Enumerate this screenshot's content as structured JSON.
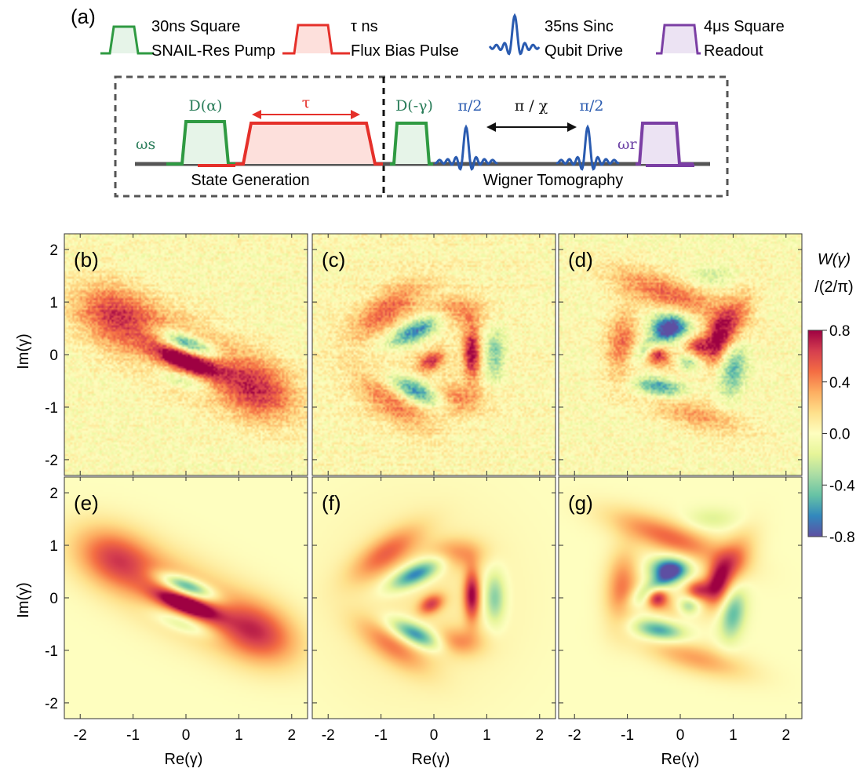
{
  "panel_a": {
    "label": "(a)",
    "legend": [
      {
        "line1": "30ns Square",
        "line2": "SNAIL-Res Pump",
        "color": "#2f9a42"
      },
      {
        "line1": "τ ns",
        "line2": "Flux  Bias Pulse",
        "color": "#e5302a"
      },
      {
        "line1": "35ns Sinc",
        "line2": "Qubit Drive",
        "color": "#2a5bb0"
      },
      {
        "line1": "4μs Square",
        "line2": "Readout",
        "color": "#7b3fa4"
      }
    ],
    "sequence": {
      "omega_s": "ωs",
      "d_alpha": "D(α)",
      "tau": "τ",
      "d_minus_gamma": "D(-γ)",
      "pi_half_1": "π/2",
      "pi_over_chi": "π / χ",
      "pi_half_2": "π/2",
      "omega_r": "ωr",
      "state_generation": "State Generation",
      "wigner_tomography": "Wigner Tomography"
    }
  },
  "panels": [
    {
      "label": "(b)",
      "kind": "measured",
      "model": "squeezed"
    },
    {
      "label": "(c)",
      "kind": "measured",
      "model": "three"
    },
    {
      "label": "(d)",
      "kind": "measured",
      "model": "four"
    },
    {
      "label": "(e)",
      "kind": "simulated",
      "model": "squeezed"
    },
    {
      "label": "(f)",
      "kind": "simulated",
      "model": "three"
    },
    {
      "label": "(g)",
      "kind": "simulated",
      "model": "four"
    }
  ],
  "axes": {
    "xlabel": "Re(γ)",
    "ylabel": "Im(γ)",
    "range": [
      -2.3,
      2.3
    ],
    "xticks": [
      "-2",
      "-1",
      "0",
      "1",
      "2"
    ],
    "yticks": [
      "2",
      "1",
      "0",
      "-1",
      "-2"
    ]
  },
  "colorbar": {
    "title_line1": "W(γ)",
    "title_line2": "/(2/π)",
    "ticks": [
      "0.8",
      "0.4",
      "0.0",
      "-0.4",
      "-0.8"
    ],
    "range": [
      -0.8,
      0.8
    ],
    "colormap": [
      "#5e4fa2",
      "#3288bd",
      "#66c2a5",
      "#abdda4",
      "#e6f598",
      "#fefebf",
      "#fee08b",
      "#fdae61",
      "#f46d43",
      "#d53e4f",
      "#9e0142"
    ]
  }
}
